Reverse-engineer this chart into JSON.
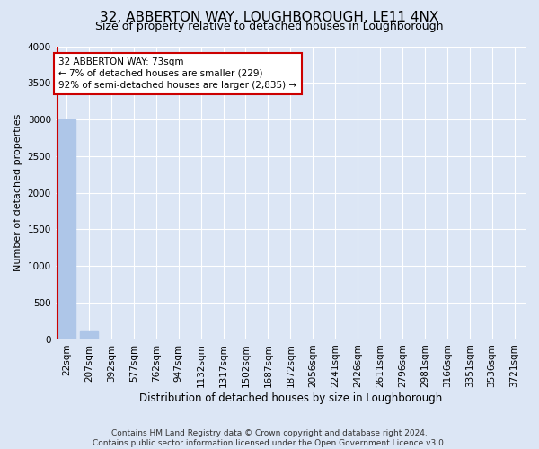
{
  "title": "32, ABBERTON WAY, LOUGHBOROUGH, LE11 4NX",
  "subtitle": "Size of property relative to detached houses in Loughborough",
  "xlabel": "Distribution of detached houses by size in Loughborough",
  "ylabel": "Number of detached properties",
  "footer_line1": "Contains HM Land Registry data © Crown copyright and database right 2024.",
  "footer_line2": "Contains public sector information licensed under the Open Government Licence v3.0.",
  "categories": [
    "22sqm",
    "207sqm",
    "392sqm",
    "577sqm",
    "762sqm",
    "947sqm",
    "1132sqm",
    "1317sqm",
    "1502sqm",
    "1687sqm",
    "1872sqm",
    "2056sqm",
    "2241sqm",
    "2426sqm",
    "2611sqm",
    "2796sqm",
    "2981sqm",
    "3166sqm",
    "3351sqm",
    "3536sqm",
    "3721sqm"
  ],
  "values": [
    3000,
    110,
    0,
    0,
    0,
    0,
    0,
    0,
    0,
    0,
    0,
    0,
    0,
    0,
    0,
    0,
    0,
    0,
    0,
    0,
    0
  ],
  "bar_color": "#aec6e8",
  "property_bar_index": 0,
  "property_line_color": "#cc0000",
  "ylim": [
    0,
    4000
  ],
  "yticks": [
    0,
    500,
    1000,
    1500,
    2000,
    2500,
    3000,
    3500,
    4000
  ],
  "annotation_text": "32 ABBERTON WAY: 73sqm\n← 7% of detached houses are smaller (229)\n92% of semi-detached houses are larger (2,835) →",
  "annotation_box_color": "#ffffff",
  "annotation_box_edge_color": "#cc0000",
  "bg_color": "#dce6f5",
  "plot_bg_color": "#dce6f5",
  "grid_color": "#ffffff",
  "title_fontsize": 11,
  "subtitle_fontsize": 9,
  "ylabel_fontsize": 8,
  "xlabel_fontsize": 8.5,
  "tick_fontsize": 7.5,
  "footer_fontsize": 6.5
}
